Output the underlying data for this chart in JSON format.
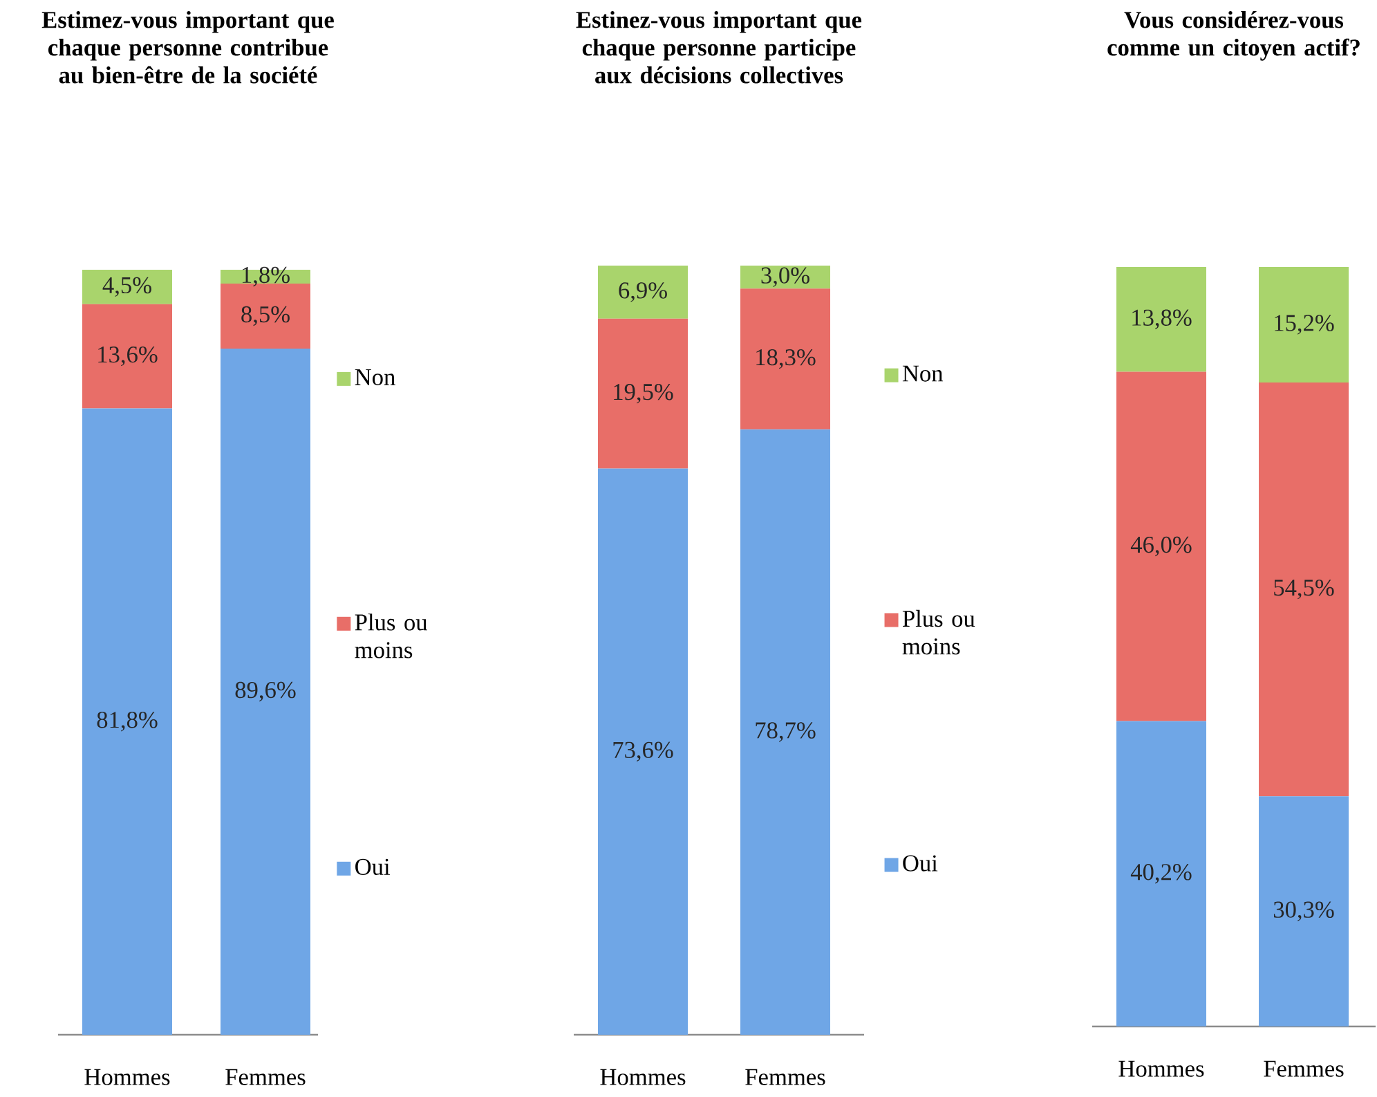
{
  "chart_data": [
    {
      "type": "bar",
      "stacked": true,
      "title": "Estimez-vous important que chaque personne contribue au bien-être de la société",
      "categories": [
        "Hommes",
        "Femmes"
      ],
      "legend": "right",
      "series": [
        {
          "name": "Oui",
          "color": "#6fa6e6",
          "values": [
            81.8,
            89.6
          ],
          "value_labels": [
            "81,8%",
            "89,6%"
          ]
        },
        {
          "name": "Plus ou moins",
          "color": "#e86e68",
          "values": [
            13.6,
            8.5
          ],
          "value_labels": [
            "13,6%",
            "8,5%"
          ]
        },
        {
          "name": "Non",
          "color": "#a9d46c",
          "values": [
            4.5,
            1.8
          ],
          "value_labels": [
            "4,5%",
            "1,8%"
          ]
        }
      ]
    },
    {
      "type": "bar",
      "stacked": true,
      "title": "Estinez-vous important que chaque personne participe aux décisions collectives",
      "categories": [
        "Hommes",
        "Femmes"
      ],
      "legend": "right",
      "series": [
        {
          "name": "Oui",
          "color": "#6fa6e6",
          "values": [
            73.6,
            78.7
          ],
          "value_labels": [
            "73,6%",
            "78,7%"
          ]
        },
        {
          "name": "Plus ou moins",
          "color": "#e86e68",
          "values": [
            19.5,
            18.3
          ],
          "value_labels": [
            "19,5%",
            "18,3%"
          ]
        },
        {
          "name": "Non",
          "color": "#a9d46c",
          "values": [
            6.9,
            3.0
          ],
          "value_labels": [
            "6,9%",
            "3,0%"
          ]
        }
      ]
    },
    {
      "type": "bar",
      "stacked": true,
      "title": "Vous considérez-vous comme un citoyen actif?",
      "categories": [
        "Hommes",
        "Femmes"
      ],
      "series": [
        {
          "color": "#6fa6e6",
          "values": [
            40.2,
            30.3
          ],
          "value_labels": [
            "40,2%",
            "30,3%"
          ]
        },
        {
          "color": "#e86e68",
          "values": [
            46.0,
            54.5
          ],
          "value_labels": [
            "46,0%",
            "54,5%"
          ]
        },
        {
          "color": "#a9d46c",
          "values": [
            13.8,
            15.2
          ],
          "value_labels": [
            "13,8%",
            "15,2%"
          ]
        }
      ]
    }
  ]
}
